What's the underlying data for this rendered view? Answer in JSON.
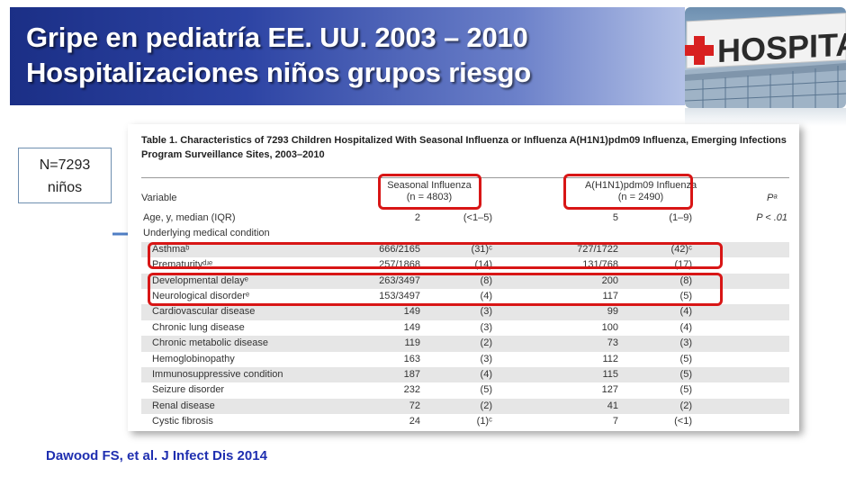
{
  "banner": {
    "title_line1": "Gripe en pediatría EE. UU. 2003 – 2010",
    "title_line2": "Hospitalizaciones niños grupos riesgo"
  },
  "hospital_image": {
    "sign_text": "HOSPITA"
  },
  "n_box": {
    "line1": "N=7293",
    "line2": "niños"
  },
  "table": {
    "caption": "Table 1.  Characteristics of 7293 Children Hospitalized With Seasonal Influenza or Influenza A(H1N1)pdm09 Influenza, Emerging Infections Program Surveillance Sites, 2003–2010",
    "headers": {
      "variable": "Variable",
      "seasonal_line1": "Seasonal Influenza",
      "seasonal_line2": "(n = 4803)",
      "h1n1_line1": "A(H1N1)pdm09 Influenza",
      "h1n1_line2": "(n = 2490)",
      "p": "Pᵃ"
    },
    "rows": [
      {
        "variable": "Age, y, median (IQR)",
        "s_val": "2",
        "s_pct": "(<1–5)",
        "h_val": "5",
        "h_pct": "(1–9)",
        "p": "P < .01",
        "indent": false,
        "shaded": false
      },
      {
        "variable": "Underlying medical condition",
        "s_val": "",
        "s_pct": "",
        "h_val": "",
        "h_pct": "",
        "p": "",
        "indent": false,
        "shaded": false
      },
      {
        "variable": "Asthmaᵇ",
        "s_val": "666/2165",
        "s_pct": "(31)ᶜ",
        "h_val": "727/1722",
        "h_pct": "(42)ᶜ",
        "p": "",
        "indent": true,
        "shaded": true
      },
      {
        "variable": "Prematurityᵈʴᵉ",
        "s_val": "257/1868",
        "s_pct": "(14)",
        "h_val": "131/768",
        "h_pct": "(17)",
        "p": "",
        "indent": true,
        "shaded": false
      },
      {
        "variable": "Developmental delayᵉ",
        "s_val": "263/3497",
        "s_pct": "(8)",
        "h_val": "200",
        "h_pct": "(8)",
        "p": "",
        "indent": true,
        "shaded": true
      },
      {
        "variable": "Neurological disorderᵉ",
        "s_val": "153/3497",
        "s_pct": "(4)",
        "h_val": "117",
        "h_pct": "(5)",
        "p": "",
        "indent": true,
        "shaded": false
      },
      {
        "variable": "Cardiovascular disease",
        "s_val": "149",
        "s_pct": "(3)",
        "h_val": "99",
        "h_pct": "(4)",
        "p": "",
        "indent": true,
        "shaded": true
      },
      {
        "variable": "Chronic lung disease",
        "s_val": "149",
        "s_pct": "(3)",
        "h_val": "100",
        "h_pct": "(4)",
        "p": "",
        "indent": true,
        "shaded": false
      },
      {
        "variable": "Chronic  metabolic disease",
        "s_val": "119",
        "s_pct": "(2)",
        "h_val": "73",
        "h_pct": "(3)",
        "p": "",
        "indent": true,
        "shaded": true
      },
      {
        "variable": "Hemoglobinopathy",
        "s_val": "163",
        "s_pct": "(3)",
        "h_val": "112",
        "h_pct": "(5)",
        "p": "",
        "indent": true,
        "shaded": false
      },
      {
        "variable": "Immunosuppressive  condition",
        "s_val": "187",
        "s_pct": "(4)",
        "h_val": "115",
        "h_pct": "(5)",
        "p": "",
        "indent": true,
        "shaded": true
      },
      {
        "variable": "Seizure disorder",
        "s_val": "232",
        "s_pct": "(5)",
        "h_val": "127",
        "h_pct": "(5)",
        "p": "",
        "indent": true,
        "shaded": false
      },
      {
        "variable": "Renal disease",
        "s_val": "72",
        "s_pct": "(2)",
        "h_val": "41",
        "h_pct": "(2)",
        "p": "",
        "indent": true,
        "shaded": true
      },
      {
        "variable": "Cystic fibrosis",
        "s_val": "24",
        "s_pct": "(1)ᶜ",
        "h_val": "7",
        "h_pct": "(<1)",
        "p": "",
        "indent": true,
        "shaded": false
      }
    ]
  },
  "citation": "Dawood  FS, et al. J Infect Dis 2014",
  "colors": {
    "banner_dark": "#1b2f86",
    "highlight_red": "#d81616",
    "citation_blue": "#1f2fb0",
    "arrow_blue": "#4f7fc4"
  }
}
